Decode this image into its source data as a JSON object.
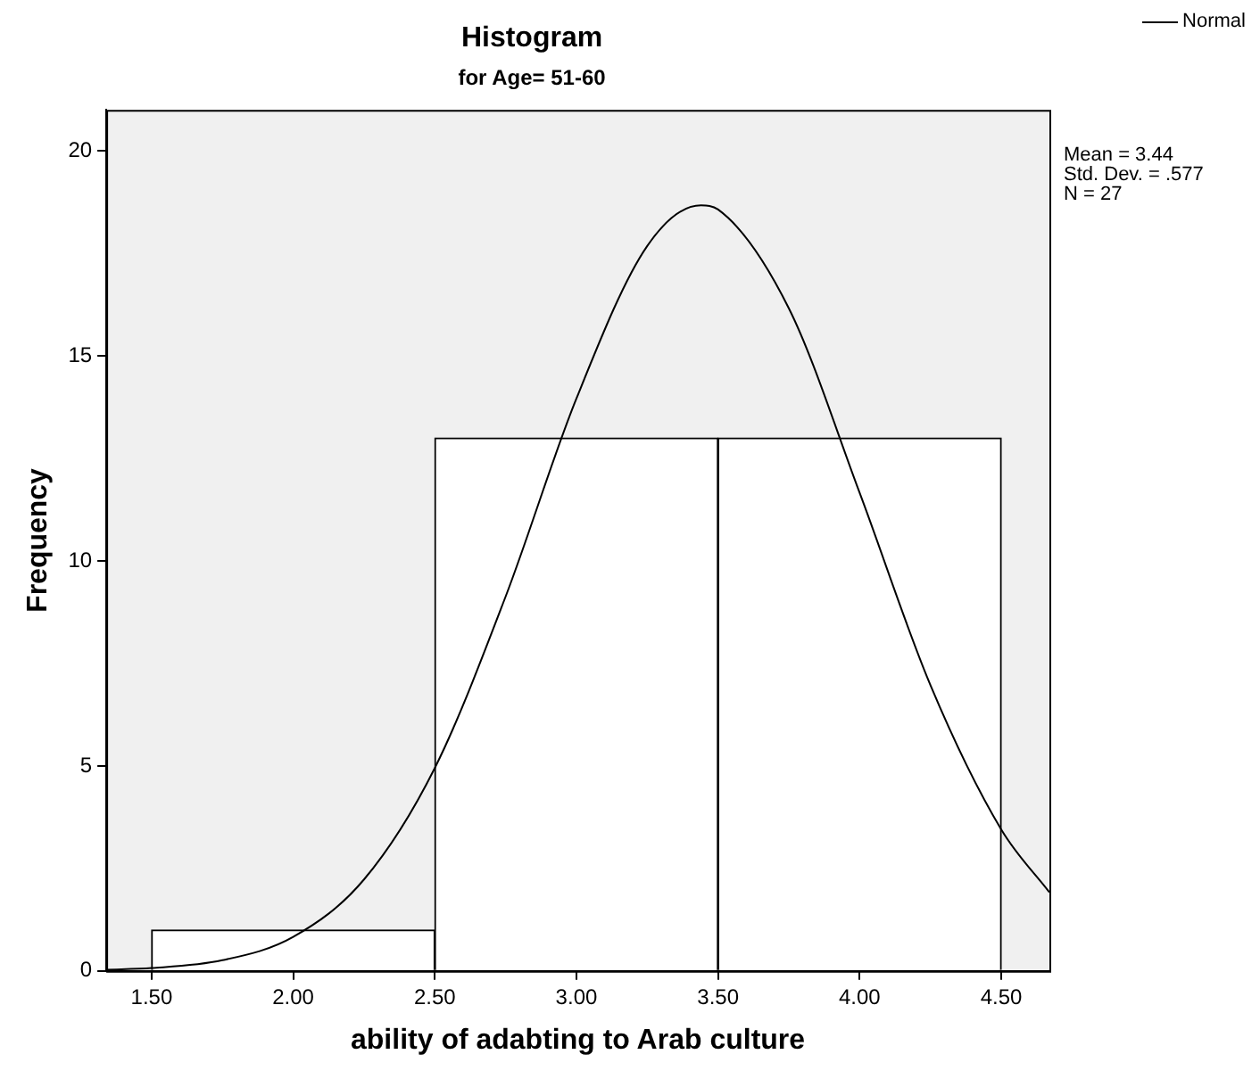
{
  "chart_data": {
    "type": "histogram",
    "title": "Histogram",
    "subtitle": "for Age= 51-60",
    "xlabel": "ability of adabting to Arab culture",
    "ylabel": "Frequency",
    "bins": [
      1.5,
      2.5,
      3.5,
      4.5
    ],
    "values": [
      1,
      13,
      13
    ],
    "color": "#ffffff",
    "series": [
      {
        "name": "Normal",
        "type": "line",
        "color": "#000000",
        "x": [
          1.34,
          1.5,
          1.75,
          2.0,
          2.25,
          2.5,
          2.75,
          3.0,
          3.25,
          3.44,
          3.5,
          3.75,
          4.0,
          4.25,
          4.5,
          4.67
        ],
        "values": [
          0.03,
          0.07,
          0.26,
          0.83,
          2.23,
          4.95,
          9.13,
          13.96,
          17.68,
          18.67,
          18.57,
          16.16,
          11.66,
          6.97,
          3.45,
          1.92
        ]
      }
    ],
    "marker": "none",
    "legend": "top right",
    "annotations": [
      "Mean = 3.44",
      "Std. Dev. = .577",
      "N = 27"
    ],
    "xlim": [
      1.34,
      4.67
    ],
    "ylim": [
      0,
      21
    ],
    "xticks": [
      {
        "value": 1.5,
        "label": "1.50"
      },
      {
        "value": 2,
        "label": "2.00"
      },
      {
        "value": 2.5,
        "label": "2.50"
      },
      {
        "value": 3,
        "label": "3.00"
      },
      {
        "value": 3.5,
        "label": "3.50"
      },
      {
        "value": 4,
        "label": "4.00"
      },
      {
        "value": 4.5,
        "label": "4.50"
      }
    ],
    "yticks": [
      0,
      5,
      10,
      15,
      20
    ],
    "grid": false
  }
}
